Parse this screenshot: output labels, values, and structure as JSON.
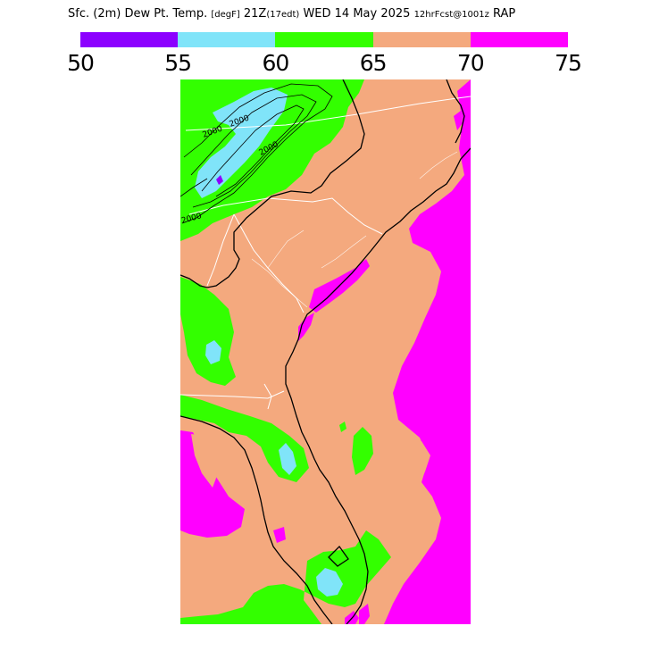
{
  "title": {
    "main": "Sfc. (2m) Dew Pt. Temp.",
    "units": "[degF]",
    "valid_time": "21Z",
    "local_time": "(17edt)",
    "date": "WED 14 May 2025",
    "forecast": "12hrFcst@1001z",
    "model": "RAP"
  },
  "colorbar": {
    "bins": [
      {
        "color": "#8c00ff"
      },
      {
        "color": "#80e4f9"
      },
      {
        "color": "#33ff00"
      },
      {
        "color": "#f4a97e"
      },
      {
        "color": "#ff00ff"
      }
    ],
    "ticks": [
      "50",
      "55",
      "60",
      "65",
      "70",
      "75"
    ]
  },
  "map": {
    "contour_labels": [
      "2000",
      "2000",
      "2000",
      "2000"
    ],
    "colors": {
      "c50_55": "#8c00ff",
      "c55_60": "#80e4f9",
      "c60_65": "#33ff00",
      "c65_70": "#f4a97e",
      "c70_75": "#ff00ff",
      "coast": "#000000",
      "borders": "#ffffff"
    }
  }
}
